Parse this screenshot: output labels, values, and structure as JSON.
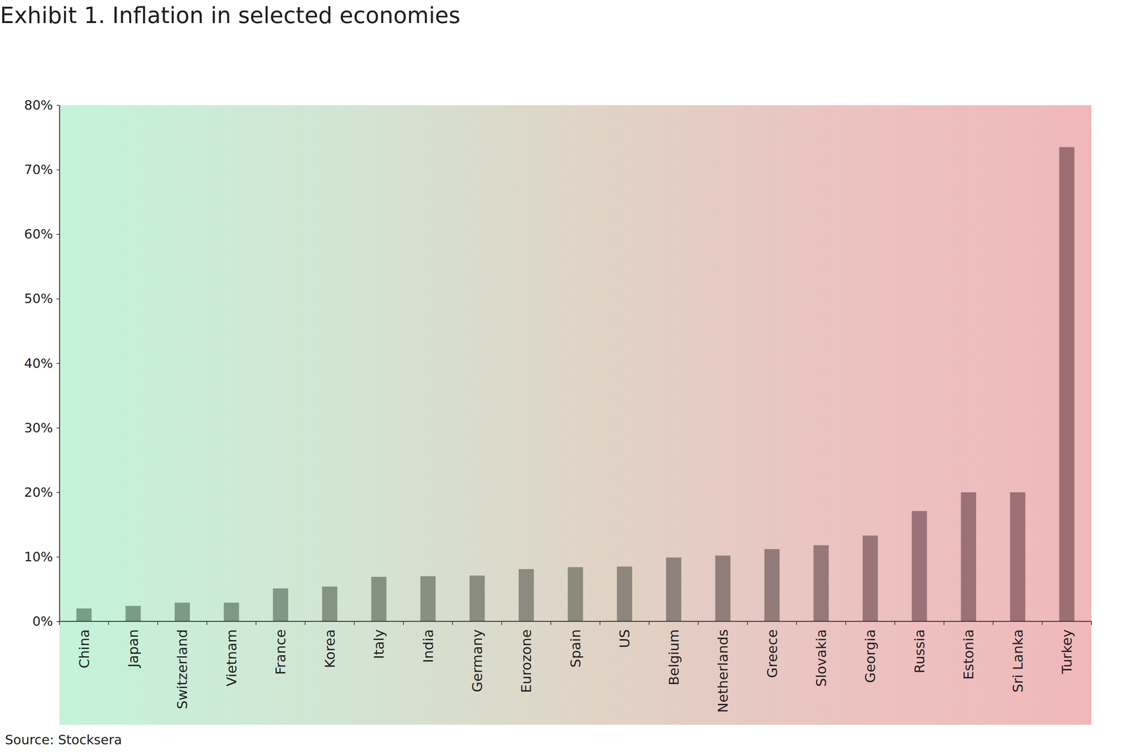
{
  "chart_data": {
    "type": "bar",
    "title": "Exhibit 1. Inflation in selected economies",
    "source": "Source: Stocksera",
    "categories": [
      "China",
      "Japan",
      "Switzerland",
      "Vietnam",
      "France",
      "Korea",
      "Italy",
      "India",
      "Germany",
      "Eurozone",
      "Spain",
      "US",
      "Belgium",
      "Netherlands",
      "Greece",
      "Slovakia",
      "Georgia",
      "Russia",
      "Estonia",
      "Sri Lanka",
      "Turkey"
    ],
    "values": [
      2.0,
      2.4,
      2.9,
      2.9,
      5.1,
      5.4,
      6.9,
      7.0,
      7.1,
      8.1,
      8.4,
      8.5,
      9.9,
      10.2,
      11.2,
      11.8,
      13.3,
      17.1,
      20.0,
      20.0,
      73.5
    ],
    "colors": [
      "#789d88",
      "#7b9b87",
      "#7d9a86",
      "#7f9885",
      "#819684",
      "#839483",
      "#859282",
      "#879081",
      "#898e80",
      "#8b8c7f",
      "#8c897d",
      "#8d867c",
      "#8e837c",
      "#917e7b",
      "#937b7a",
      "#95787a",
      "#987579",
      "#9a7378",
      "#9b7177",
      "#9c7076",
      "#9d6f75"
    ],
    "ylim": [
      0,
      80
    ],
    "yticks": [
      {
        "value": 0,
        "label": "0%"
      },
      {
        "value": 10,
        "label": "10%"
      },
      {
        "value": 20,
        "label": "20%"
      },
      {
        "value": 30,
        "label": "30%"
      },
      {
        "value": 40,
        "label": "40%"
      },
      {
        "value": 50,
        "label": "50%"
      },
      {
        "value": 60,
        "label": "60%"
      },
      {
        "value": 70,
        "label": "70%"
      },
      {
        "value": 80,
        "label": "80%"
      }
    ],
    "grid": false
  }
}
